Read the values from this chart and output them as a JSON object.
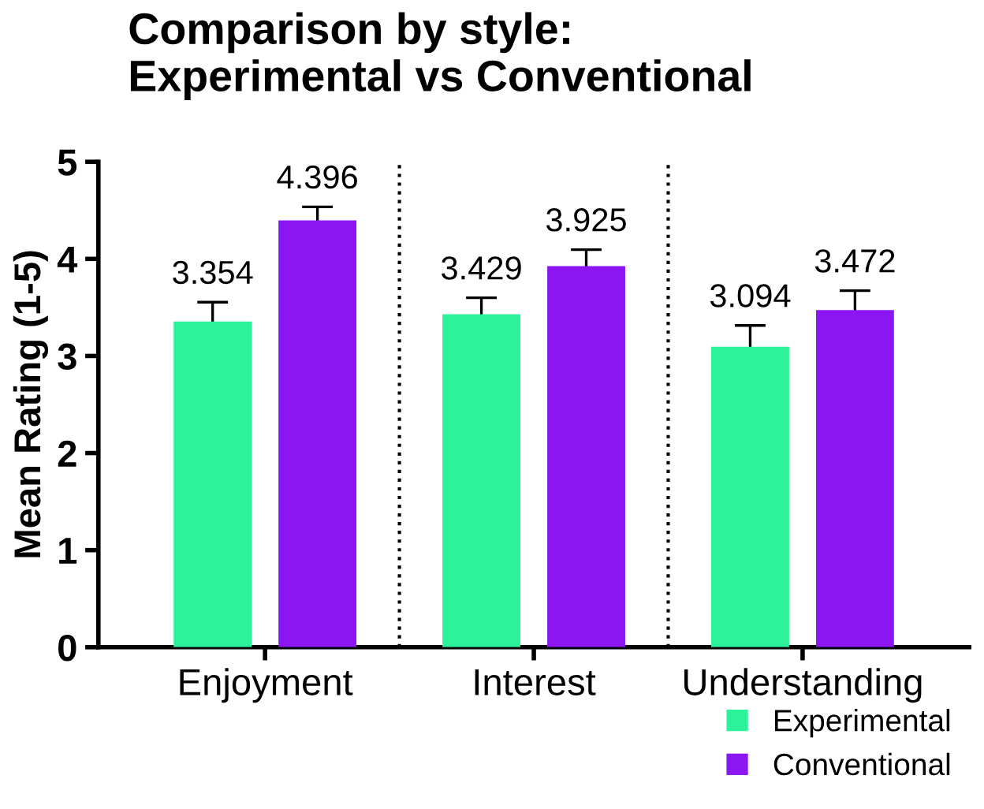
{
  "chart_data": {
    "type": "bar",
    "title": "Comparison by style:\nExperimental vs Conventional",
    "ylabel": "Mean Rating (1-5)",
    "categories": [
      "Enjoyment",
      "Interest",
      "Understanding"
    ],
    "series": [
      {
        "name": "Experimental",
        "color": "#2cf29a",
        "values": [
          3.354,
          3.429,
          3.094
        ],
        "errors": [
          0.2,
          0.17,
          0.22
        ]
      },
      {
        "name": "Conventional",
        "color": "#8b16f2",
        "values": [
          4.396,
          3.925,
          3.472
        ],
        "errors": [
          0.14,
          0.17,
          0.2
        ]
      }
    ],
    "ylim": [
      0,
      5
    ],
    "yticks": [
      0,
      1,
      2,
      3,
      4,
      5
    ],
    "data_labels": true,
    "legend": "bottom right",
    "grid": false
  }
}
